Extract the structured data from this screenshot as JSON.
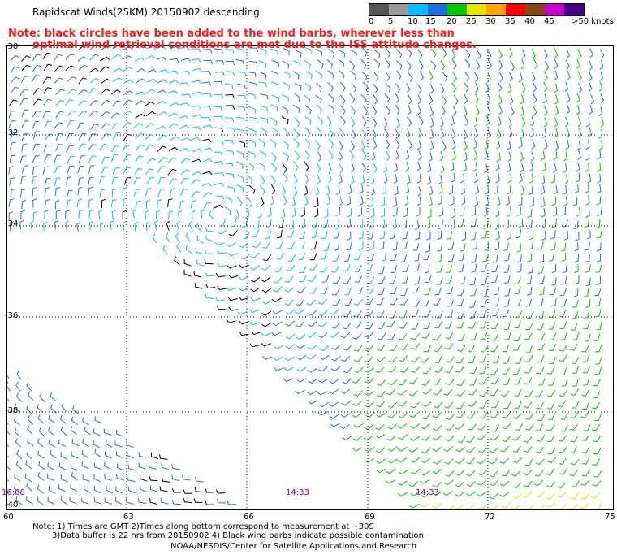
{
  "header": {
    "title": "Rapidscat Winds(25KM) 20150902 descending"
  },
  "legend": {
    "labels": [
      "0",
      "5",
      "10",
      "15",
      "20",
      "25",
      "30",
      "35",
      "40",
      "45",
      ">50 knots"
    ],
    "colors": [
      "#555555",
      "#9a9a9a",
      "#00bfff",
      "#1f6fe0",
      "#00c800",
      "#e6e600",
      "#ffa500",
      "#ff0000",
      "#8b4513",
      "#cc00cc",
      "#440088"
    ]
  },
  "note": {
    "line1": "Note: black circles have been added to the wind barbs, wherever less than",
    "line2": "optimal wind retrieval conditions are met due to the ISS attitude changes."
  },
  "map": {
    "lat_labels": [
      "-30",
      "-32",
      "-34",
      "-36",
      "-38",
      "-40"
    ],
    "lon_labels": [
      "60",
      "63",
      "66",
      "69",
      "72",
      "75"
    ],
    "time_labels": [
      "16:08",
      "14:33",
      "14:33"
    ]
  },
  "footer": {
    "line1": "Note: 1) Times are GMT 2)Times along bottom correspond to measurement at ~30S",
    "line2": "3)Data buffer is 22 hrs from 20150902 4) Black wind barbs indicate possible contamination",
    "line3": "NOAA/NESDIS/Center for Satellite Applications and Research"
  }
}
